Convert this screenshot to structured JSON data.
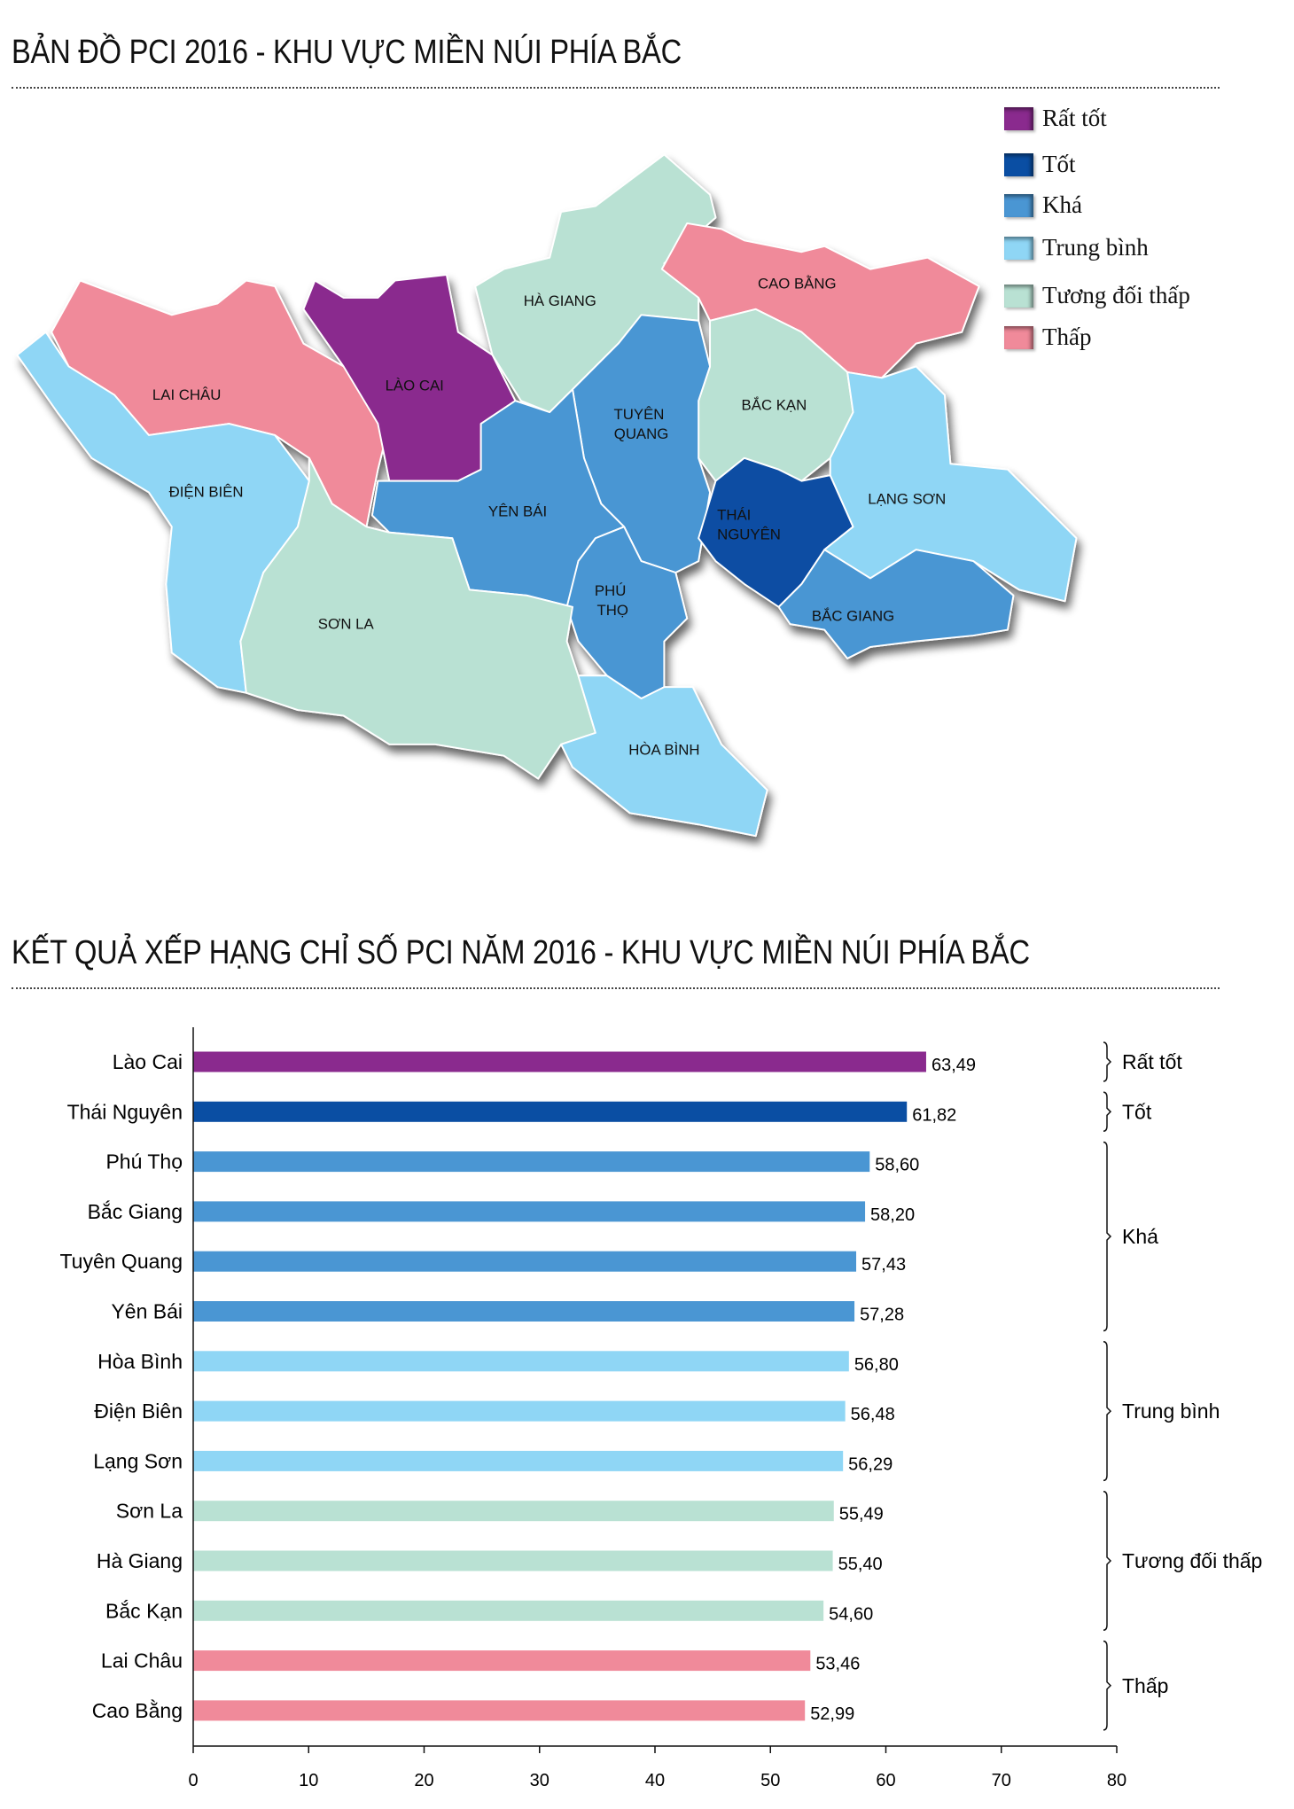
{
  "map_title": "BẢN ĐỒ PCI 2016 - KHU VỰC MIỀN NÚI PHÍA BẮC",
  "chart_title": "KẾT QUẢ XẾP HẠNG CHỈ SỐ PCI NĂM 2016 - KHU VỰC MIỀN NÚI PHÍA BẮC",
  "legend": [
    {
      "label": "Rất tốt",
      "color": "#8a2a8e"
    },
    {
      "label": "Tốt",
      "color": "#0a4ea3"
    },
    {
      "label": "Khá",
      "color": "#4a96d3"
    },
    {
      "label": "Trung bình",
      "color": "#8fd6f5"
    },
    {
      "label": "Tương đối thấp",
      "color": "#b9e1d3"
    },
    {
      "label": "Thấp",
      "color": "#f08a9a"
    }
  ],
  "provinces": [
    {
      "label": "LAI CHÂU",
      "group": 5
    },
    {
      "label": "ĐIỆN BIÊN",
      "group": 3
    },
    {
      "label": "LÀO CAI",
      "group": 0
    },
    {
      "label": "HÀ GIANG",
      "group": 4
    },
    {
      "label": "CAO BẰNG",
      "group": 5
    },
    {
      "label": "BẮC KẠN",
      "group": 4
    },
    {
      "label": "TUYÊN QUANG",
      "group": 2
    },
    {
      "label": "YÊN BÁI",
      "group": 2
    },
    {
      "label": "THÁI NGUYÊN",
      "group": 1
    },
    {
      "label": "LẠNG SƠN",
      "group": 3
    },
    {
      "label": "BẮC GIANG",
      "group": 2
    },
    {
      "label": "PHÚ THỌ",
      "group": 2
    },
    {
      "label": "SƠN LA",
      "group": 4
    },
    {
      "label": "HÒA BÌNH",
      "group": 3
    }
  ],
  "chart_data": {
    "type": "bar",
    "orientation": "horizontal",
    "title": "KẾT QUẢ XẾP HẠNG CHỈ SỐ PCI NĂM 2016 - KHU VỰC MIỀN NÚI PHÍA BẮC",
    "categories": [
      "Lào Cai",
      "Thái Nguyên",
      "Phú Thọ",
      "Bắc Giang",
      "Tuyên Quang",
      "Yên Bái",
      "Hòa Bình",
      "Điện Biên",
      "Lạng Sơn",
      "Sơn La",
      "Hà Giang",
      "Bắc Kạn",
      "Lai Châu",
      "Cao Bằng"
    ],
    "values": [
      63.49,
      61.82,
      58.6,
      58.2,
      57.43,
      57.28,
      56.8,
      56.48,
      56.29,
      55.49,
      55.4,
      54.6,
      53.46,
      52.99
    ],
    "value_labels": [
      "63,49",
      "61,82",
      "58,60",
      "58,20",
      "57,43",
      "57,28",
      "56,80",
      "56,48",
      "56,29",
      "55,49",
      "55,40",
      "54,60",
      "53,46",
      "52,99"
    ],
    "groups": [
      {
        "label": "Rất tốt",
        "from": 0,
        "to": 0,
        "color": "#8a2a8e"
      },
      {
        "label": "Tốt",
        "from": 1,
        "to": 1,
        "color": "#0a4ea3"
      },
      {
        "label": "Khá",
        "from": 2,
        "to": 5,
        "color": "#4a96d3"
      },
      {
        "label": "Trung bình",
        "from": 6,
        "to": 8,
        "color": "#8fd6f5"
      },
      {
        "label": "Tương đối thấp",
        "from": 9,
        "to": 11,
        "color": "#b9e1d3"
      },
      {
        "label": "Thấp",
        "from": 12,
        "to": 13,
        "color": "#f08a9a"
      }
    ],
    "xlim": [
      0,
      80
    ],
    "xticks": [
      0,
      10,
      20,
      30,
      40,
      50,
      60,
      70,
      80
    ],
    "grid": false
  }
}
